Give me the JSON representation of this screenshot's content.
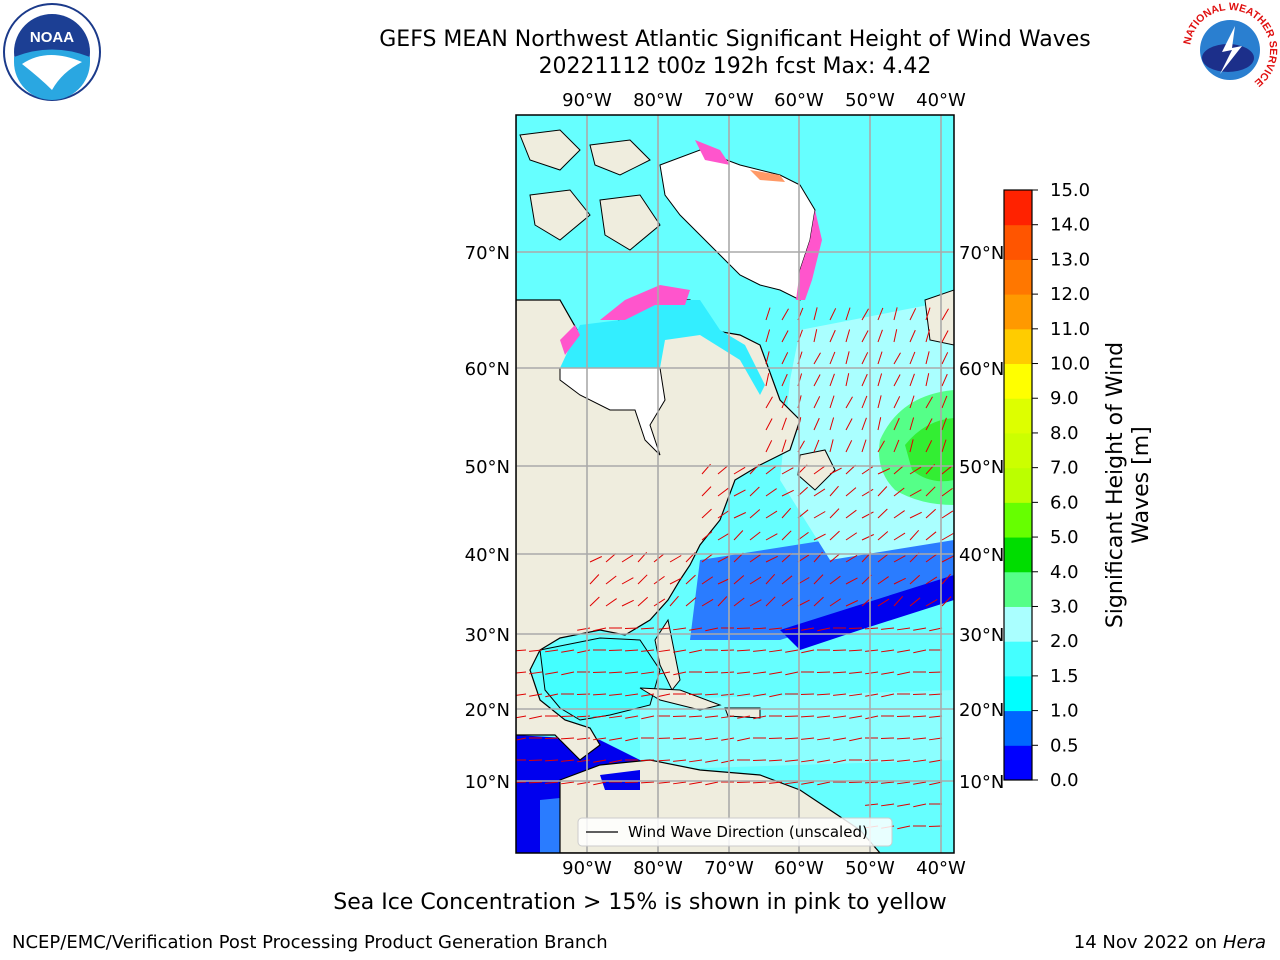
{
  "header": {
    "title_line1": "GEFS MEAN Northwest Atlantic Significant Height of Wind Waves",
    "title_line2": "20221112 t00z 192h fcst   Max: 4.42"
  },
  "map": {
    "lon_labels": [
      "90°W",
      "80°W",
      "70°W",
      "60°W",
      "50°W",
      "40°W"
    ],
    "lat_labels": [
      "70°N",
      "60°N",
      "50°N",
      "40°N",
      "30°N",
      "20°N",
      "10°N"
    ],
    "legend_label": "Wind Wave Direction (unscaled)",
    "arrow_color": "#e00000",
    "land_color": "#efedde",
    "ice_colors": [
      "#ff55cc",
      "#ff9966",
      "#ffdd00"
    ]
  },
  "colorbar": {
    "label": "Significant Height of Wind Waves [m]",
    "ticks": [
      "0.0",
      "0.5",
      "1.0",
      "1.5",
      "2.0",
      "3.0",
      "4.0",
      "5.0",
      "6.0",
      "7.0",
      "8.0",
      "9.0",
      "10.0",
      "11.0",
      "12.0",
      "13.0",
      "14.0",
      "15.0"
    ],
    "colors": [
      "#0000ff",
      "#0066ff",
      "#00ffff",
      "#44ffff",
      "#aaffff",
      "#55ff88",
      "#00dd00",
      "#66ff00",
      "#bbff00",
      "#ccff00",
      "#ddff00",
      "#ffff00",
      "#ffcc00",
      "#ff9900",
      "#ff7700",
      "#ff5500",
      "#ff2200"
    ]
  },
  "footer": {
    "note": "Sea Ice Concentration > 15% is shown in pink to yellow",
    "org": "NCEP/EMC/Verification Post Processing Product Generation Branch",
    "date": "14 Nov 2022 on",
    "machine": "Hera"
  },
  "logos": {
    "noaa_text": "NOAA",
    "nws_ring": "NATIONAL WEATHER SERVICE"
  }
}
